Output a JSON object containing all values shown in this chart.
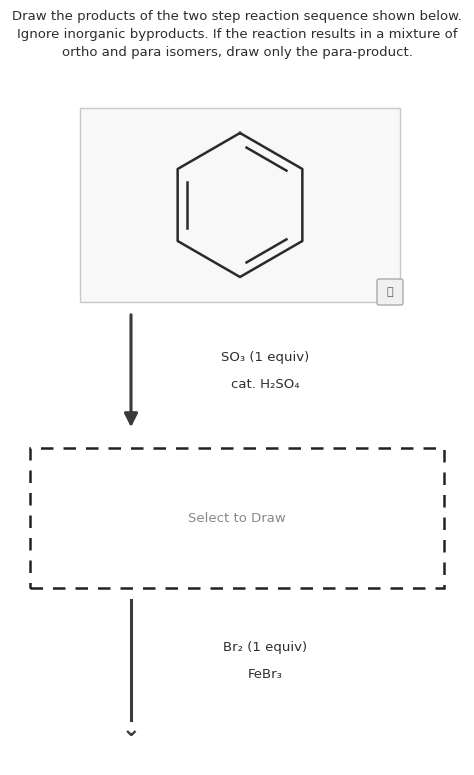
{
  "title_line1": "Draw the products of the two step reaction sequence shown below.",
  "title_line2": "Ignore inorganic byproducts. If the reaction results in a mixture of",
  "title_line3": "ortho and para isomers, draw only the para-product.",
  "title_fontsize": 9.5,
  "bg_color": "#ffffff",
  "text_color": "#2d2d2d",
  "step1_reagent1": "SO₃ (1 equiv)",
  "step1_reagent2": "cat. H₂SO₄",
  "step2_reagent1": "Br₂ (1 equiv)",
  "step2_reagent2": "FeBr₃",
  "select_to_draw": "Select to Draw",
  "arrow_color": "#3a3a3a",
  "reagent_fontsize": 9.5,
  "select_fontsize": 9.5
}
